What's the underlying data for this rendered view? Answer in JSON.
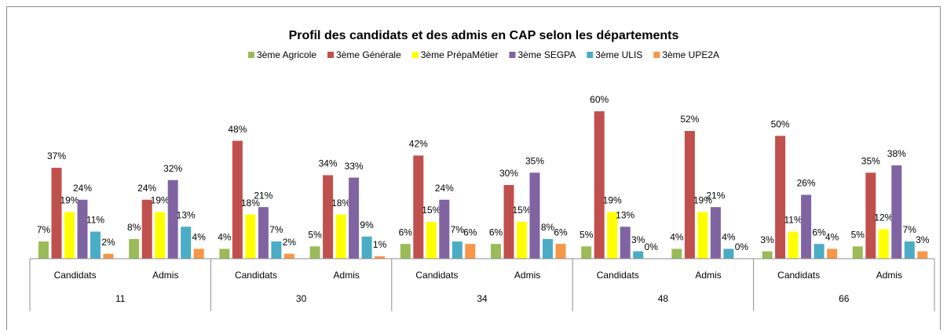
{
  "chart_data": {
    "type": "bar",
    "title": "Profil des candidats et des admis en CAP selon les départements",
    "categories": [
      "Candidats",
      "Admis",
      "Candidats",
      "Admis",
      "Candidats",
      "Admis",
      "Candidats",
      "Admis",
      "Candidats",
      "Admis"
    ],
    "groups": [
      "11",
      "30",
      "34",
      "48",
      "66"
    ],
    "legend": "top",
    "series": [
      {
        "name": "3ème Agricole",
        "color": "#9bbb59",
        "values": [
          7,
          8,
          4,
          5,
          6,
          6,
          5,
          4,
          3,
          5
        ],
        "value_labels": [
          "7%",
          "8%",
          "4%",
          "5%",
          "6%",
          "6%",
          "5%",
          "4%",
          "3%",
          "5%"
        ]
      },
      {
        "name": "3ème Générale",
        "color": "#c0504d",
        "values": [
          37,
          24,
          48,
          34,
          42,
          30,
          60,
          52,
          50,
          35
        ],
        "value_labels": [
          "37%",
          "24%",
          "48%",
          "34%",
          "42%",
          "30%",
          "60%",
          "52%",
          "50%",
          "35%"
        ]
      },
      {
        "name": "3ème PrépaMétier",
        "color": "#ffff00",
        "values": [
          19,
          19,
          18,
          18,
          15,
          15,
          19,
          19,
          11,
          12
        ],
        "value_labels": [
          "19%",
          "19%",
          "18%",
          "18%",
          "15%",
          "15%",
          "19%",
          "19%",
          "11%",
          "12%"
        ]
      },
      {
        "name": "3ème SEGPA",
        "color": "#8064a2",
        "values": [
          24,
          32,
          21,
          33,
          24,
          35,
          13,
          21,
          26,
          38
        ],
        "value_labels": [
          "24%",
          "32%",
          "21%",
          "33%",
          "24%",
          "35%",
          "13%",
          "21%",
          "26%",
          "38%"
        ]
      },
      {
        "name": "3ème ULIS",
        "color": "#4bacc6",
        "values": [
          11,
          13,
          7,
          9,
          7,
          8,
          3,
          4,
          6,
          7
        ],
        "value_labels": [
          "11%",
          "13%",
          "7%",
          "9%",
          "7%",
          "8%",
          "3%",
          "4%",
          "6%",
          "7%"
        ]
      },
      {
        "name": "3ème UPE2A",
        "color": "#f79646",
        "values": [
          2,
          4,
          2,
          1,
          6,
          6,
          0,
          0,
          4,
          3
        ],
        "value_labels": [
          "2%",
          "4%",
          "2%",
          "1%",
          "6%",
          "6%",
          "0%",
          "0%",
          "4%",
          "3%"
        ]
      }
    ]
  }
}
